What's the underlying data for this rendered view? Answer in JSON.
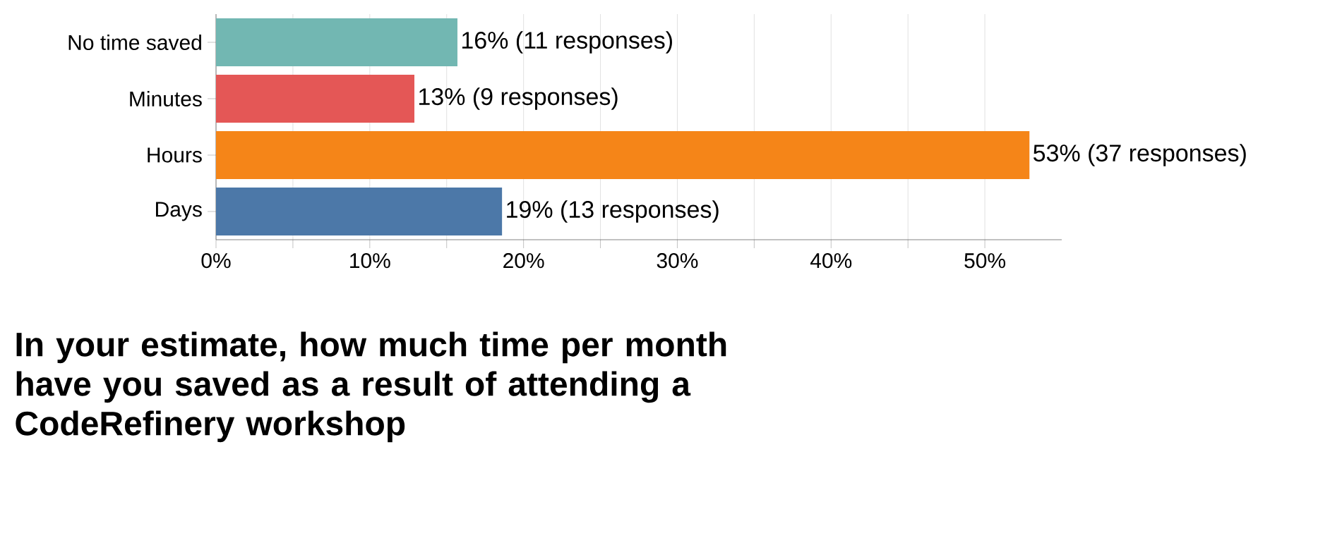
{
  "chart_data": {
    "type": "bar",
    "orientation": "horizontal",
    "title": "In your estimate, how much time per month have you saved as a result of attending a CodeRefinery workshop",
    "categories": [
      "No time saved",
      "Minutes",
      "Hours",
      "Days"
    ],
    "values": [
      15.7,
      12.9,
      52.9,
      18.6
    ],
    "value_labels": [
      "16% (11 responses)",
      "13% (9 responses)",
      "53% (37 responses)",
      "19% (13 responses)"
    ],
    "colors": [
      "#72b7b2",
      "#e45756",
      "#f58518",
      "#4c78a8"
    ],
    "xlim": [
      0,
      55
    ],
    "xticks": [
      {
        "value": 0,
        "label": "0%"
      },
      {
        "value": 5,
        "label": null
      },
      {
        "value": 10,
        "label": "10%"
      },
      {
        "value": 15,
        "label": null
      },
      {
        "value": 20,
        "label": "20%"
      },
      {
        "value": 25,
        "label": null
      },
      {
        "value": 30,
        "label": "30%"
      },
      {
        "value": 35,
        "label": null
      },
      {
        "value": 40,
        "label": "40%"
      },
      {
        "value": 45,
        "label": null
      },
      {
        "value": 50,
        "label": "50%"
      }
    ],
    "grid": "x"
  }
}
